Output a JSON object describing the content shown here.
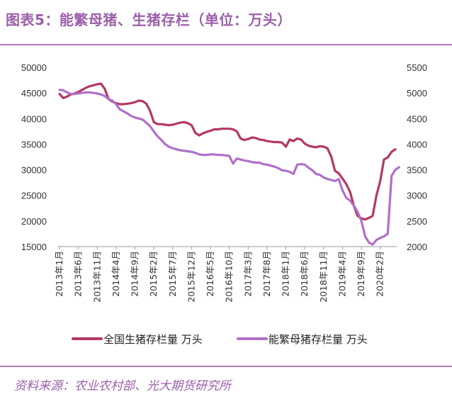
{
  "header": {
    "title": "图表5：能繁母猪、生猪存栏（单位：万头）"
  },
  "footer": {
    "source": "资料来源：农业农村部、光大期货研究所"
  },
  "colors": {
    "accent": "#9b5fa9",
    "series1": "#b5385f",
    "series2": "#b06fc9"
  },
  "chart_data": {
    "type": "line",
    "title": "能繁母猪、生猪存栏（单位：万头）",
    "left_axis": {
      "ylim": [
        15000,
        50000
      ],
      "ticks": [
        "50000",
        "45000",
        "40000",
        "35000",
        "30000",
        "25000",
        "20000",
        "15000"
      ]
    },
    "right_axis": {
      "ylim": [
        2000,
        5500
      ],
      "ticks": [
        "5500",
        "5000",
        "4500",
        "4000",
        "3500",
        "3000",
        "2500",
        "2000"
      ]
    },
    "x_tick_labels": [
      "2013年1月",
      "2013年6月",
      "2013年11月",
      "2014年4月",
      "2014年9月",
      "2015年2月",
      "2015年7月",
      "2015年12月",
      "2016年5月",
      "2016年10月",
      "2017年3月",
      "2017年8月",
      "2018年1月",
      "2018年6月",
      "2018年11月",
      "2019年4月",
      "2019年9月",
      "2020年2月"
    ],
    "x_start": "2013-01",
    "series": [
      {
        "name": "全国生猪存栏量 万头",
        "axis": "left",
        "values": [
          44800,
          44000,
          44300,
          44700,
          44900,
          45200,
          45600,
          46000,
          46300,
          46500,
          46700,
          46800,
          45800,
          43800,
          43300,
          43000,
          42800,
          42800,
          42900,
          43000,
          43200,
          43500,
          43400,
          42900,
          41500,
          39300,
          38900,
          38900,
          38800,
          38700,
          38800,
          39000,
          39200,
          39300,
          39100,
          38700,
          37200,
          36700,
          37100,
          37400,
          37600,
          37900,
          37900,
          38000,
          38000,
          38000,
          37900,
          37500,
          36100,
          35800,
          36000,
          36300,
          36200,
          35900,
          35800,
          35600,
          35500,
          35400,
          35400,
          35300,
          34500,
          35900,
          35600,
          36100,
          35900,
          35100,
          34700,
          34500,
          34400,
          34600,
          34500,
          34200,
          32600,
          29800,
          29300,
          28300,
          27200,
          25700,
          23000,
          21000,
          20500,
          20300,
          20600,
          21000,
          25000,
          27800,
          32000,
          32400,
          33500,
          34000
        ]
      },
      {
        "name": "能繁母猪存栏量 万头",
        "axis": "right",
        "values": [
          5060,
          5050,
          5010,
          4980,
          4980,
          4990,
          5000,
          5010,
          5010,
          5000,
          4990,
          4970,
          4940,
          4880,
          4850,
          4780,
          4680,
          4640,
          4600,
          4550,
          4520,
          4500,
          4480,
          4420,
          4350,
          4250,
          4150,
          4080,
          4000,
          3950,
          3920,
          3900,
          3880,
          3870,
          3860,
          3850,
          3830,
          3800,
          3790,
          3790,
          3800,
          3800,
          3790,
          3790,
          3780,
          3770,
          3620,
          3720,
          3700,
          3680,
          3670,
          3650,
          3640,
          3640,
          3610,
          3600,
          3580,
          3560,
          3530,
          3490,
          3480,
          3460,
          3420,
          3600,
          3610,
          3600,
          3540,
          3490,
          3420,
          3400,
          3350,
          3320,
          3300,
          3280,
          3320,
          3100,
          2950,
          2900,
          2800,
          2680,
          2500,
          2200,
          2080,
          2040,
          2130,
          2170,
          2200,
          2250,
          3380,
          3500,
          3550
        ]
      }
    ],
    "legend": {
      "placement": "bottom"
    }
  }
}
